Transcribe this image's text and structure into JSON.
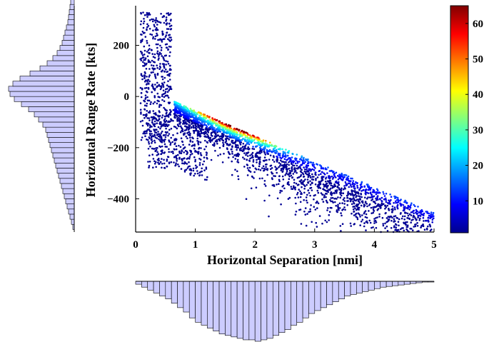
{
  "chart_data": {
    "type": "scatter",
    "title": "",
    "xlabel": "Horizontal Separation [nmi]",
    "ylabel": "Horizontal Range Rate [kts]",
    "xlim": [
      0,
      5
    ],
    "ylim": [
      -530,
      355
    ],
    "xticks": [
      0,
      1,
      2,
      3,
      4,
      5
    ],
    "yticks": [
      -400,
      -200,
      0,
      200
    ],
    "colorbar": {
      "colormap": "jet",
      "min": 1,
      "max": 65,
      "ticks": [
        10,
        20,
        30,
        40,
        50,
        60
      ]
    },
    "point_color_meaning": "point density",
    "grid": false,
    "marginal_histograms": {
      "x_histogram": {
        "position": "below",
        "bin_edges_start": 0,
        "bin_width": 0.1,
        "counts": [
          4,
          8,
          12,
          16,
          20,
          24,
          30,
          36,
          42,
          50,
          56,
          60,
          64,
          68,
          72,
          74,
          76,
          78,
          80,
          80,
          82,
          80,
          78,
          74,
          70,
          66,
          60,
          56,
          50,
          44,
          40,
          36,
          32,
          28,
          24,
          20,
          18,
          16,
          14,
          12,
          10,
          8,
          7,
          6,
          5,
          4,
          3,
          2,
          1,
          1
        ]
      },
      "y_histogram": {
        "position": "left",
        "bin_edges_start": -520,
        "bin_width": 20,
        "counts": [
          2,
          4,
          6,
          8,
          10,
          12,
          14,
          16,
          18,
          20,
          22,
          24,
          26,
          28,
          30,
          32,
          34,
          36,
          38,
          40,
          44,
          50,
          56,
          64,
          74,
          84,
          90,
          92,
          86,
          76,
          62,
          48,
          38,
          30,
          24,
          20,
          17,
          15,
          13,
          11,
          9,
          8,
          7,
          6,
          5,
          4,
          3,
          2,
          1,
          1,
          1,
          1,
          0
        ]
      }
    }
  }
}
